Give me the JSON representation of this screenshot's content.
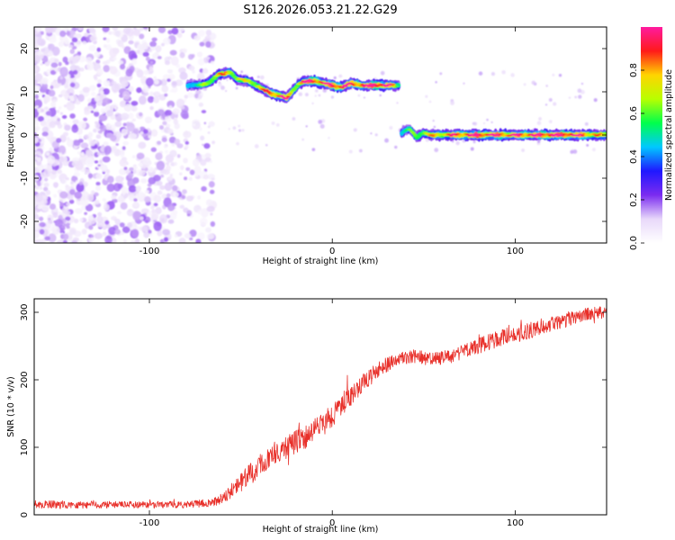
{
  "title": "S126.2026.053.21.22.G29",
  "chart_data": [
    {
      "type": "heatmap",
      "xlabel": "Height of straight line (km)",
      "ylabel": "Frequency (Hz)",
      "xlim": [
        -163,
        150
      ],
      "ylim": [
        -25,
        25
      ],
      "xticks": [
        -100,
        0,
        100
      ],
      "yticks": [
        20,
        10,
        0,
        -10,
        -20
      ],
      "colorbar": {
        "label": "Normalized spectral amplitude",
        "range": [
          0,
          1
        ],
        "ticks": [
          0.0,
          0.2,
          0.4,
          0.6,
          0.8
        ],
        "colors": [
          "#ffffff",
          "#e8d8fa",
          "#7b2cf0",
          "#1f18ff",
          "#00c8ff",
          "#00ff4c",
          "#b8ff00",
          "#ffd400",
          "#ff1a1a",
          "#ff1aa0"
        ]
      },
      "noise_region": {
        "x": [
          -163,
          -65
        ],
        "y": [
          -25,
          25
        ],
        "amplitude": 0.2
      },
      "ridge_segments": [
        {
          "x": [
            -79,
            -74,
            -68,
            -62,
            -56,
            -52,
            -46,
            -42,
            -37,
            -33,
            -28,
            -25,
            -22,
            -18,
            -14,
            -10,
            -5,
            0,
            5,
            10,
            15,
            20,
            25,
            30,
            37
          ],
          "frequency": [
            11.5,
            11.5,
            12.0,
            14.0,
            14.5,
            13.0,
            12.5,
            11.5,
            10.5,
            9.5,
            9.0,
            8.5,
            10.0,
            12.0,
            12.5,
            12.5,
            12.0,
            11.5,
            11.0,
            12.0,
            11.5,
            11.5,
            11.5,
            11.5,
            11.5
          ],
          "amplitude": [
            0.25,
            0.3,
            0.45,
            0.6,
            0.55,
            0.5,
            0.5,
            0.55,
            0.6,
            0.75,
            0.8,
            0.7,
            0.5,
            0.6,
            0.8,
            0.85,
            0.75,
            0.8,
            0.85,
            0.7,
            0.8,
            0.85,
            0.9,
            0.9,
            0.3
          ]
        },
        {
          "x": [
            38,
            42,
            46,
            50,
            54,
            60,
            70,
            80,
            90,
            100,
            110,
            120,
            130,
            140,
            150
          ],
          "frequency": [
            0.5,
            1.5,
            -0.5,
            0.5,
            0.0,
            0.0,
            0.0,
            0.0,
            0.0,
            0.0,
            0.0,
            0.0,
            0.0,
            0.0,
            0.0
          ],
          "amplitude": [
            0.3,
            0.35,
            0.4,
            0.5,
            0.55,
            0.6,
            0.75,
            0.85,
            0.8,
            0.75,
            0.8,
            0.85,
            0.85,
            0.7,
            0.5
          ]
        }
      ]
    },
    {
      "type": "line",
      "xlabel": "Height of straight line (km)",
      "ylabel": "SNR (10 * v/v)",
      "xlim": [
        -163,
        150
      ],
      "ylim": [
        0,
        320
      ],
      "xticks": [
        -100,
        0,
        100
      ],
      "yticks": [
        0,
        100,
        200,
        300
      ],
      "color": "#e8302a",
      "series": [
        {
          "name": "SNR",
          "x": [
            -163,
            -140,
            -120,
            -100,
            -80,
            -65,
            -55,
            -45,
            -35,
            -25,
            -15,
            -5,
            5,
            15,
            25,
            35,
            45,
            55,
            65,
            75,
            85,
            95,
            105,
            115,
            125,
            135,
            150
          ],
          "values": [
            15,
            15,
            15,
            15,
            15,
            18,
            35,
            60,
            85,
            100,
            115,
            135,
            160,
            190,
            215,
            230,
            235,
            230,
            235,
            245,
            255,
            265,
            270,
            280,
            285,
            295,
            300
          ],
          "noise": [
            6,
            6,
            5,
            5,
            5,
            6,
            12,
            16,
            18,
            18,
            18,
            18,
            16,
            14,
            12,
            10,
            10,
            10,
            10,
            12,
            12,
            12,
            12,
            12,
            10,
            10,
            10
          ]
        }
      ]
    }
  ]
}
